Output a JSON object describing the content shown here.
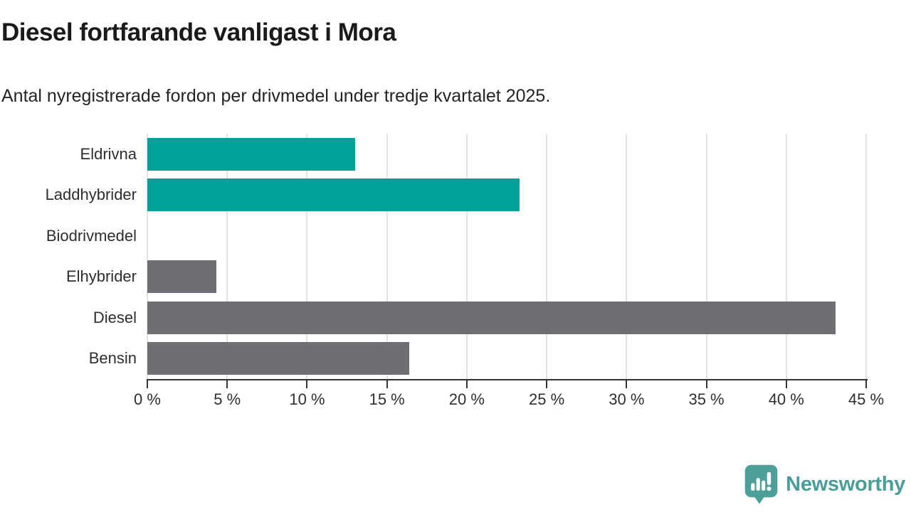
{
  "header": {
    "title": "Diesel fortfarande vanligast i Mora",
    "subtitle": "Antal nyregistrerade fordon per drivmedel under tredje kvartalet 2025."
  },
  "chart_data": {
    "type": "bar",
    "orientation": "horizontal",
    "title": "Diesel fortfarande vanligast i Mora",
    "subtitle": "Antal nyregistrerade fordon per drivmedel under tredje kvartalet 2025.",
    "categories": [
      "Eldrivna",
      "Laddhybrider",
      "Biodrivmedel",
      "Elhybrider",
      "Diesel",
      "Bensin"
    ],
    "values": [
      13,
      23.3,
      0,
      4.3,
      43.1,
      16.4
    ],
    "bar_colors": [
      "#00a29b",
      "#00a29b",
      "#6e6e74",
      "#6e6e74",
      "#6e6e74",
      "#6e6e74"
    ],
    "unit": "%",
    "xlim": [
      0,
      45
    ],
    "x_tick_step": 5,
    "x_tick_labels": [
      "0 %",
      "5 %",
      "10 %",
      "15 %",
      "20 %",
      "25 %",
      "30 %",
      "35 %",
      "40 %",
      "45 %"
    ],
    "grid": true,
    "legend": false,
    "accent_color": "#00a29b",
    "neutral_color": "#6e6e74",
    "gridline_color": "#e3e3e3",
    "axis_color": "#333333"
  },
  "footer": {
    "brand": "Newsworthy",
    "brand_color": "#4a9e99",
    "logo_icon": "bar-chart-speech-bubble-icon",
    "logo_fill": "#4da09a"
  }
}
